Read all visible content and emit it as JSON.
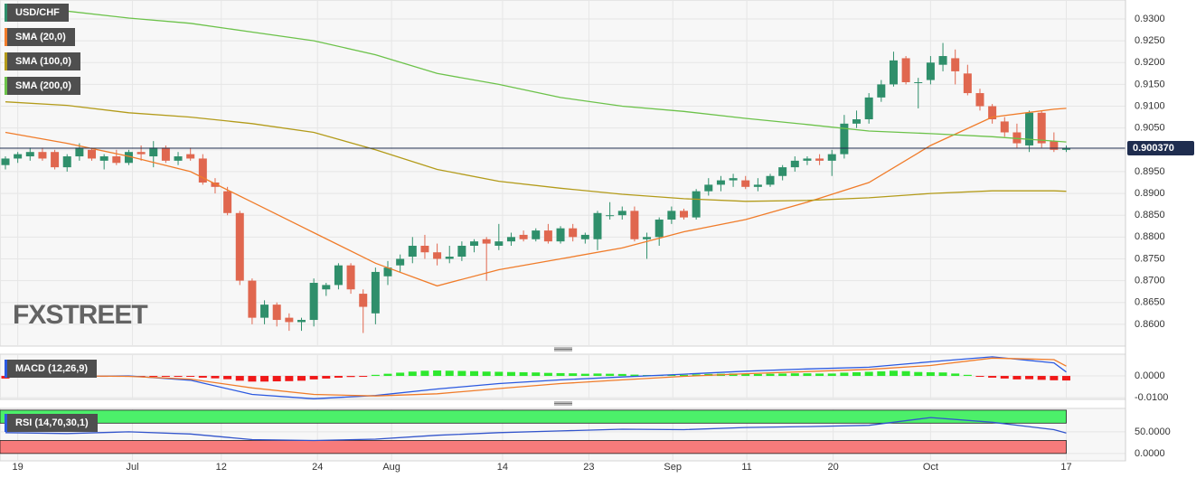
{
  "chart_data": [
    {
      "type": "candlestick",
      "watermark": "FXSTREET",
      "grid": true,
      "xlim": [
        -0.44,
        90.8
      ],
      "ylim": [
        0.855,
        0.93435
      ],
      "xticks": [
        {
          "value": 1,
          "label": "19"
        },
        {
          "value": 10.3,
          "label": "Jul"
        },
        {
          "value": 17.5,
          "label": "12"
        },
        {
          "value": 25.3,
          "label": "24"
        },
        {
          "value": 31.3,
          "label": "Aug"
        },
        {
          "value": 40.3,
          "label": "14"
        },
        {
          "value": 47.3,
          "label": "23"
        },
        {
          "value": 54.1,
          "label": "Sep"
        },
        {
          "value": 60.1,
          "label": "11"
        },
        {
          "value": 67.1,
          "label": "20"
        },
        {
          "value": 75,
          "label": "Oct"
        },
        {
          "value": 86,
          "label": "17"
        }
      ],
      "yticks": [
        {
          "value": 0.86,
          "label": "0.8600"
        },
        {
          "value": 0.865,
          "label": "0.8650"
        },
        {
          "value": 0.87,
          "label": "0.8700"
        },
        {
          "value": 0.875,
          "label": "0.8750"
        },
        {
          "value": 0.88,
          "label": "0.8800"
        },
        {
          "value": 0.885,
          "label": "0.8850"
        },
        {
          "value": 0.89,
          "label": "0.8900"
        },
        {
          "value": 0.895,
          "label": "0.8950"
        },
        {
          "value": 0.9,
          "label": "0.9000"
        },
        {
          "value": 0.905,
          "label": "0.9050"
        },
        {
          "value": 0.91,
          "label": "0.9100"
        },
        {
          "value": 0.915,
          "label": "0.9150"
        },
        {
          "value": 0.92,
          "label": "0.9200"
        },
        {
          "value": 0.925,
          "label": "0.9250"
        },
        {
          "value": 0.93,
          "label": "0.9300"
        }
      ],
      "last_price": {
        "value": 0.90037,
        "label": "0.900370"
      },
      "series": [
        {
          "name": "USD/CHF",
          "type": "candlestick",
          "up_color": "#2f8f6b",
          "down_color": "#e0674f",
          "open": [
            0.8965,
            0.898,
            0.8985,
            0.8995,
            0.8995,
            0.896,
            0.8985,
            0.9,
            0.8975,
            0.8985,
            0.897,
            0.8995,
            0.8985,
            0.9005,
            0.8975,
            0.899,
            0.898,
            0.8925,
            0.8905,
            0.8855,
            0.87,
            0.8615,
            0.8645,
            0.8615,
            0.8605,
            0.861,
            0.868,
            0.869,
            0.8735,
            0.867,
            0.8625,
            0.871,
            0.8735,
            0.8755,
            0.878,
            0.8765,
            0.875,
            0.8755,
            0.878,
            0.8795,
            0.878,
            0.879,
            0.8805,
            0.8795,
            0.8815,
            0.879,
            0.882,
            0.8795,
            0.8795,
            0.885,
            0.885,
            0.886,
            0.8795,
            0.88,
            0.884,
            0.886,
            0.8845,
            0.8905,
            0.892,
            0.893,
            0.893,
            0.8915,
            0.892,
            0.894,
            0.896,
            0.8975,
            0.898,
            0.8975,
            0.899,
            0.906,
            0.907,
            0.912,
            0.915,
            0.921,
            0.9155,
            0.916,
            0.9195,
            0.921,
            0.9175,
            0.913,
            0.91,
            0.9065,
            0.904,
            0.901,
            0.9085,
            0.902,
            0.9
          ],
          "high": [
            0.8985,
            0.8995,
            0.9005,
            0.9005,
            0.9,
            0.899,
            0.9015,
            0.9005,
            0.899,
            0.9,
            0.9,
            0.901,
            0.902,
            0.901,
            0.8995,
            0.9005,
            0.899,
            0.8935,
            0.8915,
            0.886,
            0.8705,
            0.8655,
            0.865,
            0.8625,
            0.8615,
            0.8705,
            0.8695,
            0.874,
            0.874,
            0.868,
            0.873,
            0.8745,
            0.876,
            0.88,
            0.8805,
            0.8785,
            0.878,
            0.879,
            0.8795,
            0.88,
            0.883,
            0.881,
            0.8815,
            0.882,
            0.883,
            0.8825,
            0.883,
            0.881,
            0.886,
            0.888,
            0.887,
            0.887,
            0.881,
            0.8845,
            0.887,
            0.8865,
            0.891,
            0.8935,
            0.894,
            0.8945,
            0.894,
            0.8935,
            0.8945,
            0.8965,
            0.8985,
            0.8985,
            0.899,
            0.9,
            0.908,
            0.909,
            0.913,
            0.916,
            0.9225,
            0.9215,
            0.9165,
            0.9215,
            0.9245,
            0.923,
            0.9195,
            0.914,
            0.9105,
            0.9075,
            0.906,
            0.909,
            0.909,
            0.904,
            0.901
          ],
          "low": [
            0.8955,
            0.897,
            0.8975,
            0.8975,
            0.8955,
            0.895,
            0.8975,
            0.8975,
            0.8955,
            0.8965,
            0.8965,
            0.8975,
            0.896,
            0.897,
            0.8965,
            0.8975,
            0.892,
            0.89,
            0.885,
            0.869,
            0.86,
            0.86,
            0.8595,
            0.8585,
            0.8585,
            0.8595,
            0.8665,
            0.868,
            0.867,
            0.858,
            0.86,
            0.869,
            0.872,
            0.874,
            0.875,
            0.8735,
            0.874,
            0.8745,
            0.8765,
            0.87,
            0.877,
            0.878,
            0.879,
            0.879,
            0.8785,
            0.8785,
            0.879,
            0.8785,
            0.877,
            0.884,
            0.884,
            0.879,
            0.875,
            0.878,
            0.883,
            0.884,
            0.884,
            0.8895,
            0.8905,
            0.8915,
            0.891,
            0.8905,
            0.8915,
            0.893,
            0.895,
            0.8965,
            0.8965,
            0.894,
            0.898,
            0.905,
            0.906,
            0.911,
            0.9145,
            0.915,
            0.9095,
            0.915,
            0.918,
            0.915,
            0.9125,
            0.909,
            0.906,
            0.903,
            0.9005,
            0.8995,
            0.9005,
            0.8995,
            0.8995
          ],
          "close": [
            0.898,
            0.899,
            0.8995,
            0.898,
            0.896,
            0.8985,
            0.9005,
            0.898,
            0.8985,
            0.897,
            0.8995,
            0.899,
            0.9005,
            0.8975,
            0.8985,
            0.898,
            0.8925,
            0.8915,
            0.8855,
            0.87,
            0.8615,
            0.8645,
            0.861,
            0.8605,
            0.861,
            0.8695,
            0.869,
            0.8735,
            0.868,
            0.864,
            0.872,
            0.873,
            0.875,
            0.878,
            0.8765,
            0.875,
            0.8755,
            0.878,
            0.879,
            0.8785,
            0.879,
            0.88,
            0.8795,
            0.8815,
            0.879,
            0.882,
            0.88,
            0.8805,
            0.8855,
            0.885,
            0.886,
            0.8795,
            0.88,
            0.884,
            0.886,
            0.8845,
            0.8905,
            0.892,
            0.893,
            0.8935,
            0.8915,
            0.892,
            0.894,
            0.896,
            0.8975,
            0.898,
            0.8975,
            0.899,
            0.906,
            0.907,
            0.912,
            0.915,
            0.9205,
            0.9155,
            0.9155,
            0.92,
            0.9215,
            0.918,
            0.913,
            0.91,
            0.907,
            0.904,
            0.9015,
            0.9085,
            0.9015,
            0.9,
            0.90037
          ]
        },
        {
          "name": "SMA (20,0)",
          "type": "line",
          "color": "#f07c2a",
          "x": [
            0,
            5,
            10,
            15,
            20,
            25,
            30,
            35,
            40,
            45,
            50,
            55,
            60,
            65,
            70,
            75,
            80,
            85,
            86
          ],
          "values": [
            0.904,
            0.9015,
            0.8985,
            0.895,
            0.888,
            0.881,
            0.874,
            0.8688,
            0.8725,
            0.875,
            0.8775,
            0.8812,
            0.884,
            0.888,
            0.8925,
            0.901,
            0.9075,
            0.9093,
            0.9095
          ]
        },
        {
          "name": "SMA (100,0)",
          "type": "line",
          "color": "#b39b1a",
          "x": [
            0,
            5,
            10,
            15,
            20,
            25,
            30,
            35,
            40,
            45,
            50,
            55,
            60,
            65,
            70,
            75,
            80,
            85,
            86
          ],
          "values": [
            0.911,
            0.9102,
            0.9085,
            0.9075,
            0.906,
            0.904,
            0.9,
            0.8955,
            0.8928,
            0.8912,
            0.8898,
            0.8888,
            0.8882,
            0.8884,
            0.889,
            0.89,
            0.8906,
            0.8906,
            0.8905
          ]
        },
        {
          "name": "SMA (200,0)",
          "type": "line",
          "color": "#6cc24a",
          "x": [
            0,
            5,
            10,
            15,
            20,
            25,
            30,
            35,
            40,
            45,
            50,
            55,
            60,
            65,
            70,
            75,
            80,
            85,
            86
          ],
          "values": [
            0.9327,
            0.9318,
            0.9302,
            0.929,
            0.927,
            0.925,
            0.9218,
            0.9175,
            0.915,
            0.912,
            0.91,
            0.9088,
            0.9072,
            0.9058,
            0.9043,
            0.9037,
            0.903,
            0.902,
            0.9018
          ]
        }
      ]
    },
    {
      "type": "macd",
      "title": "MACD (12,26,9)",
      "title_color": "#2b59e0",
      "ylim": [
        -0.0108,
        0.01
      ],
      "yticks": [
        {
          "value": 0,
          "label": "0.0000"
        },
        {
          "value": -0.01,
          "label": "-0.0100"
        }
      ],
      "series": [
        {
          "type": "histogram",
          "up_color": "#2ee82e",
          "down_color": "#f01818",
          "values": [
            -0.0012,
            -0.0008,
            -0.0006,
            -0.0005,
            -0.0005,
            -0.0003,
            -0.0002,
            -0.0002,
            -0.0001,
            -0.0002,
            -0.0001,
            -0.0002,
            -0.0002,
            -0.0003,
            -0.0003,
            -0.0004,
            -0.0008,
            -0.0011,
            -0.0015,
            -0.0022,
            -0.0026,
            -0.0026,
            -0.0025,
            -0.0024,
            -0.0022,
            -0.0016,
            -0.0012,
            -0.0008,
            -0.0005,
            -0.0003,
            0.0005,
            0.001,
            0.0015,
            0.002,
            0.0024,
            0.0025,
            0.0024,
            0.0023,
            0.0022,
            0.002,
            0.0019,
            0.0018,
            0.0017,
            0.0016,
            0.0014,
            0.0013,
            0.0012,
            0.001,
            0.0011,
            0.001,
            0.0009,
            0.0006,
            0.0004,
            0.0004,
            0.0005,
            0.0005,
            0.0007,
            0.0009,
            0.001,
            0.0011,
            0.001,
            0.0009,
            0.001,
            0.0011,
            0.0012,
            0.0012,
            0.0011,
            0.0011,
            0.0015,
            0.0017,
            0.0019,
            0.0021,
            0.0024,
            0.0022,
            0.0018,
            0.0017,
            0.0016,
            0.0011,
            0.0005,
            -0.0002,
            -0.0008,
            -0.0012,
            -0.0016,
            -0.0015,
            -0.0018,
            -0.002,
            -0.0021
          ]
        },
        {
          "type": "line",
          "color": "#2b59e0",
          "x": [
            0,
            5,
            10,
            15,
            20,
            25,
            30,
            35,
            40,
            45,
            50,
            55,
            60,
            65,
            70,
            75,
            80,
            85,
            86
          ],
          "values": [
            0.0,
            -0.0002,
            0.0,
            -0.002,
            -0.0085,
            -0.0105,
            -0.009,
            -0.006,
            -0.0035,
            -0.0018,
            -0.0005,
            0.0008,
            0.0022,
            0.0032,
            0.004,
            0.0065,
            0.0088,
            0.006,
            0.0018
          ]
        },
        {
          "type": "line",
          "color": "#f07c2a",
          "x": [
            0,
            5,
            10,
            15,
            20,
            25,
            30,
            35,
            40,
            45,
            50,
            55,
            60,
            65,
            70,
            75,
            80,
            85,
            86
          ],
          "values": [
            0.0002,
            0.0,
            -0.0002,
            -0.0015,
            -0.0055,
            -0.0085,
            -0.0092,
            -0.0082,
            -0.0058,
            -0.0035,
            -0.0018,
            -0.0002,
            0.001,
            0.002,
            0.003,
            0.0048,
            0.0082,
            0.0075,
            0.0045
          ]
        }
      ]
    },
    {
      "type": "rsi",
      "title": "RSI (14,70,30,1)",
      "title_color": "#2b59e0",
      "ylim": [
        -17,
        104
      ],
      "yticks": [
        {
          "value": 50,
          "label": "50.0000"
        },
        {
          "value": 0,
          "label": "0.0000"
        }
      ],
      "bands": [
        {
          "from": 70,
          "to": 100,
          "color": "#4cf06a"
        },
        {
          "from": 0,
          "to": 30,
          "color": "#f77b7b"
        }
      ],
      "series": [
        {
          "type": "line",
          "color": "#3355cc",
          "x": [
            0,
            5,
            10,
            15,
            20,
            25,
            30,
            35,
            40,
            45,
            50,
            55,
            60,
            65,
            70,
            75,
            80,
            85,
            86
          ],
          "values": [
            48,
            46,
            50,
            45,
            32,
            30,
            33,
            42,
            48,
            52,
            56,
            55,
            60,
            62,
            65,
            83,
            72,
            55,
            47
          ]
        }
      ]
    }
  ]
}
